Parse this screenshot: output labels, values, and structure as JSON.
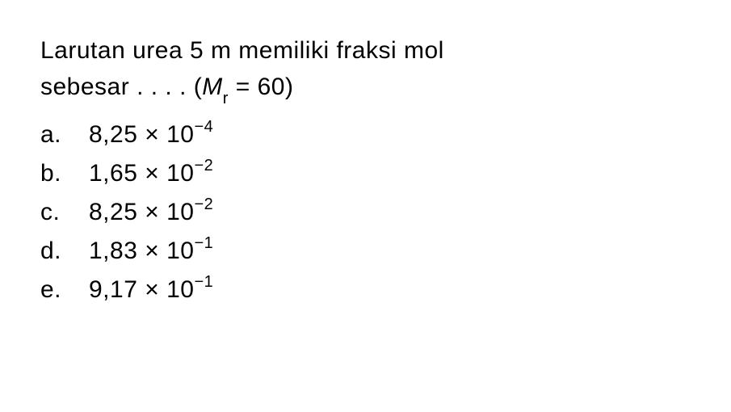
{
  "question": {
    "line1": "Larutan urea 5 m memiliki fraksi mol",
    "line2_prefix": "sebesar . . . . (",
    "mr_symbol": "M",
    "mr_sub": "r",
    "mr_equals": " = 60)",
    "text_color": "#000000",
    "fontsize": 30
  },
  "options": [
    {
      "label": "a.",
      "coefficient": "8,25",
      "times": " × 10",
      "exponent": "−4"
    },
    {
      "label": "b.",
      "coefficient": "1,65",
      "times": " × 10",
      "exponent": "−2"
    },
    {
      "label": "c.",
      "coefficient": "8,25",
      "times": " × 10",
      "exponent": "−2"
    },
    {
      "label": "d.",
      "coefficient": "1,83",
      "times": " × 10",
      "exponent": "−1"
    },
    {
      "label": "e.",
      "coefficient": "9,17",
      "times": " × 10",
      "exponent": "−1"
    }
  ],
  "style": {
    "background_color": "#ffffff",
    "text_color": "#000000",
    "fontsize": 30,
    "sup_fontsize": 20,
    "sub_fontsize": 20,
    "line_height": 1.6,
    "option_label_width": 60
  }
}
